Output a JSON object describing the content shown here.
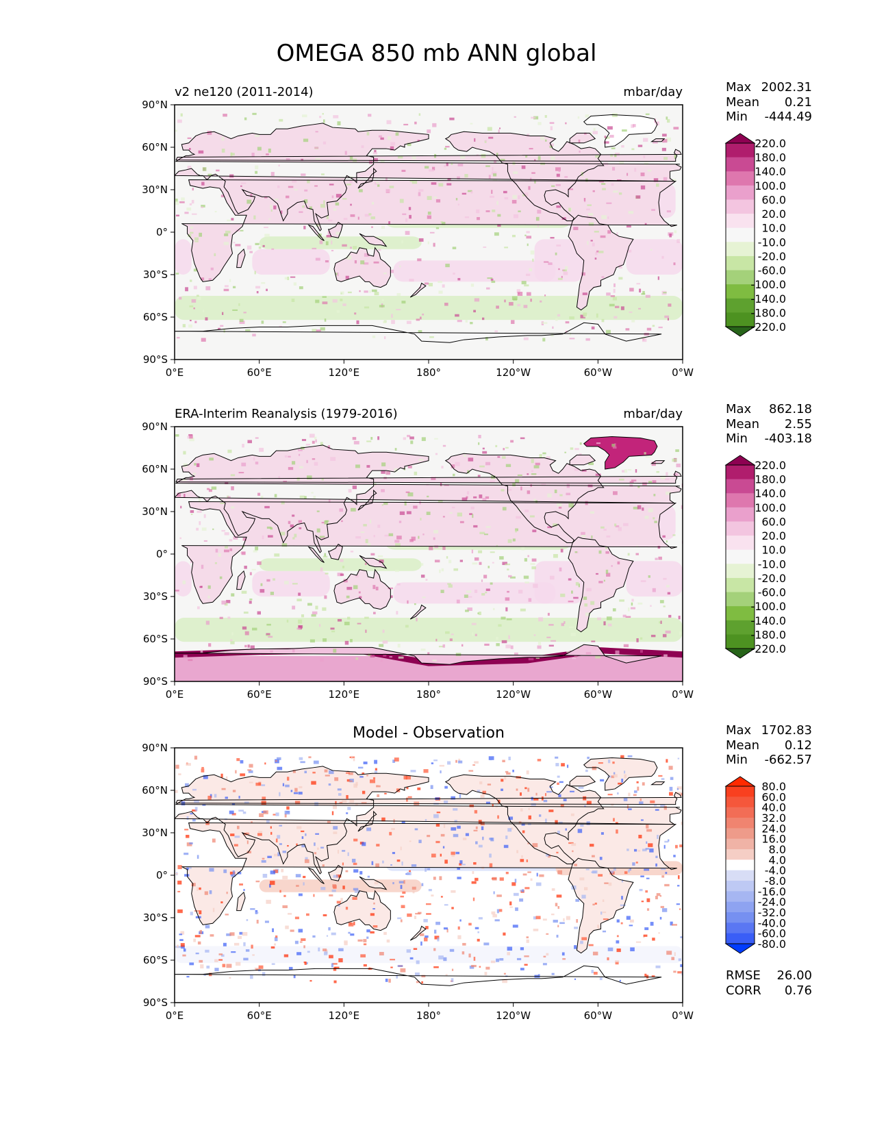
{
  "figure_title": "OMEGA 850 mb ANN global",
  "colors": {
    "ocean_neutral": "#f6f6f5",
    "pink_light": "#f6d9ec",
    "pink_mid": "#e9a7cf",
    "magenta": "#c2247a",
    "maroon": "#8e0152",
    "green_light": "#d9efc5",
    "green_mid": "#a8d47f",
    "green_dark": "#276419",
    "red_diff": "#ff2a00",
    "blue_diff": "#003cff",
    "coastline": "#000000"
  },
  "panels": [
    {
      "left_title": "v2 ne120 (2011-2014)",
      "right_title": "mbar/day",
      "center_title": "",
      "stats": [
        {
          "label": "Max",
          "value": "2002.31"
        },
        {
          "label": "Mean",
          "value": "0.21"
        },
        {
          "label": "Min",
          "value": "-444.49"
        }
      ],
      "extra_stats": []
    },
    {
      "left_title": "ERA-Interim Reanalysis (1979-2016)",
      "right_title": "mbar/day",
      "center_title": "",
      "stats": [
        {
          "label": "Max",
          "value": "862.18"
        },
        {
          "label": "Mean",
          "value": "2.55"
        },
        {
          "label": "Min",
          "value": "-403.18"
        }
      ],
      "extra_stats": []
    },
    {
      "left_title": "",
      "right_title": "",
      "center_title": "Model - Observation",
      "stats": [
        {
          "label": "Max",
          "value": "1702.83"
        },
        {
          "label": "Mean",
          "value": "0.12"
        },
        {
          "label": "Min",
          "value": "-662.57"
        }
      ],
      "extra_stats": [
        {
          "label": "RMSE",
          "value": "26.00"
        },
        {
          "label": "CORR",
          "value": "0.76"
        }
      ]
    }
  ],
  "chart_data": [
    {
      "type": "heatmap",
      "title": "v2 ne120 (2011-2014)",
      "units": "mbar/day",
      "field": "OMEGA 850 mb annual mean (model)",
      "x_ticks": [
        "0°E",
        "60°E",
        "120°E",
        "180°",
        "120°W",
        "60°W",
        "0°W"
      ],
      "x_values": [
        0,
        60,
        120,
        180,
        240,
        300,
        360
      ],
      "y_ticks": [
        "90°N",
        "60°N",
        "30°N",
        "0°",
        "30°S",
        "60°S",
        "90°S"
      ],
      "y_values": [
        90,
        60,
        30,
        0,
        -30,
        -60,
        -90
      ],
      "xlim": [
        0,
        360
      ],
      "ylim": [
        -90,
        90
      ],
      "colorbar_levels": [
        "220.0",
        "180.0",
        "140.0",
        "100.0",
        "60.0",
        "20.0",
        "10.0",
        "-10.0",
        "-20.0",
        "-60.0",
        "-100.0",
        "-140.0",
        "-180.0",
        "-220.0"
      ],
      "colorbar_colors": [
        "#8e0152",
        "#b01d6d",
        "#c94a93",
        "#de77ae",
        "#eaa0cc",
        "#f3c5e0",
        "#f9e2ef",
        "#f7f7f7",
        "#e6f3d4",
        "#c8e6a5",
        "#a4d17a",
        "#7fbc41",
        "#5ea12f",
        "#4d9221",
        "#276419"
      ],
      "max": 2002.31,
      "mean": 0.21,
      "min": -444.49
    },
    {
      "type": "heatmap",
      "title": "ERA-Interim Reanalysis (1979-2016)",
      "units": "mbar/day",
      "field": "OMEGA 850 mb annual mean (reanalysis)",
      "x_ticks": [
        "0°E",
        "60°E",
        "120°E",
        "180°",
        "120°W",
        "60°W",
        "0°W"
      ],
      "x_values": [
        0,
        60,
        120,
        180,
        240,
        300,
        360
      ],
      "y_ticks": [
        "90°N",
        "60°N",
        "30°N",
        "0°",
        "30°S",
        "60°S",
        "90°S"
      ],
      "y_values": [
        90,
        60,
        30,
        0,
        -30,
        -60,
        -90
      ],
      "xlim": [
        0,
        360
      ],
      "ylim": [
        -90,
        90
      ],
      "colorbar_levels": [
        "220.0",
        "180.0",
        "140.0",
        "100.0",
        "60.0",
        "20.0",
        "10.0",
        "-10.0",
        "-20.0",
        "-60.0",
        "-100.0",
        "-140.0",
        "-180.0",
        "-220.0"
      ],
      "colorbar_colors": [
        "#8e0152",
        "#b01d6d",
        "#c94a93",
        "#de77ae",
        "#eaa0cc",
        "#f3c5e0",
        "#f9e2ef",
        "#f7f7f7",
        "#e6f3d4",
        "#c8e6a5",
        "#a4d17a",
        "#7fbc41",
        "#5ea12f",
        "#4d9221",
        "#276419"
      ],
      "max": 862.18,
      "mean": 2.55,
      "min": -403.18
    },
    {
      "type": "heatmap",
      "title": "Model - Observation",
      "units": "mbar/day",
      "field": "OMEGA 850 mb difference",
      "x_ticks": [
        "0°E",
        "60°E",
        "120°E",
        "180°",
        "120°W",
        "60°W",
        "0°W"
      ],
      "x_values": [
        0,
        60,
        120,
        180,
        240,
        300,
        360
      ],
      "y_ticks": [
        "90°N",
        "60°N",
        "30°N",
        "0°",
        "30°S",
        "60°S",
        "90°S"
      ],
      "y_values": [
        90,
        60,
        30,
        0,
        -30,
        -60,
        -90
      ],
      "xlim": [
        0,
        360
      ],
      "ylim": [
        -90,
        90
      ],
      "colorbar_levels": [
        "80.0",
        "60.0",
        "40.0",
        "32.0",
        "24.0",
        "16.0",
        "8.0",
        "4.0",
        "-4.0",
        "-8.0",
        "-16.0",
        "-24.0",
        "-32.0",
        "-40.0",
        "-60.0",
        "-80.0"
      ],
      "colorbar_colors": [
        "#ff2a00",
        "#f9401f",
        "#f5573b",
        "#f26d56",
        "#f08470",
        "#ee9b8a",
        "#f0b3a6",
        "#f5cec5",
        "#ffffff",
        "#d8ddf6",
        "#bec9f4",
        "#a6b6f2",
        "#8ea3f1",
        "#7690f1",
        "#5a77f3",
        "#3a5ef7",
        "#003cff"
      ],
      "max": 1702.83,
      "mean": 0.12,
      "min": -662.57,
      "rmse": 26.0,
      "corr": 0.76
    }
  ]
}
